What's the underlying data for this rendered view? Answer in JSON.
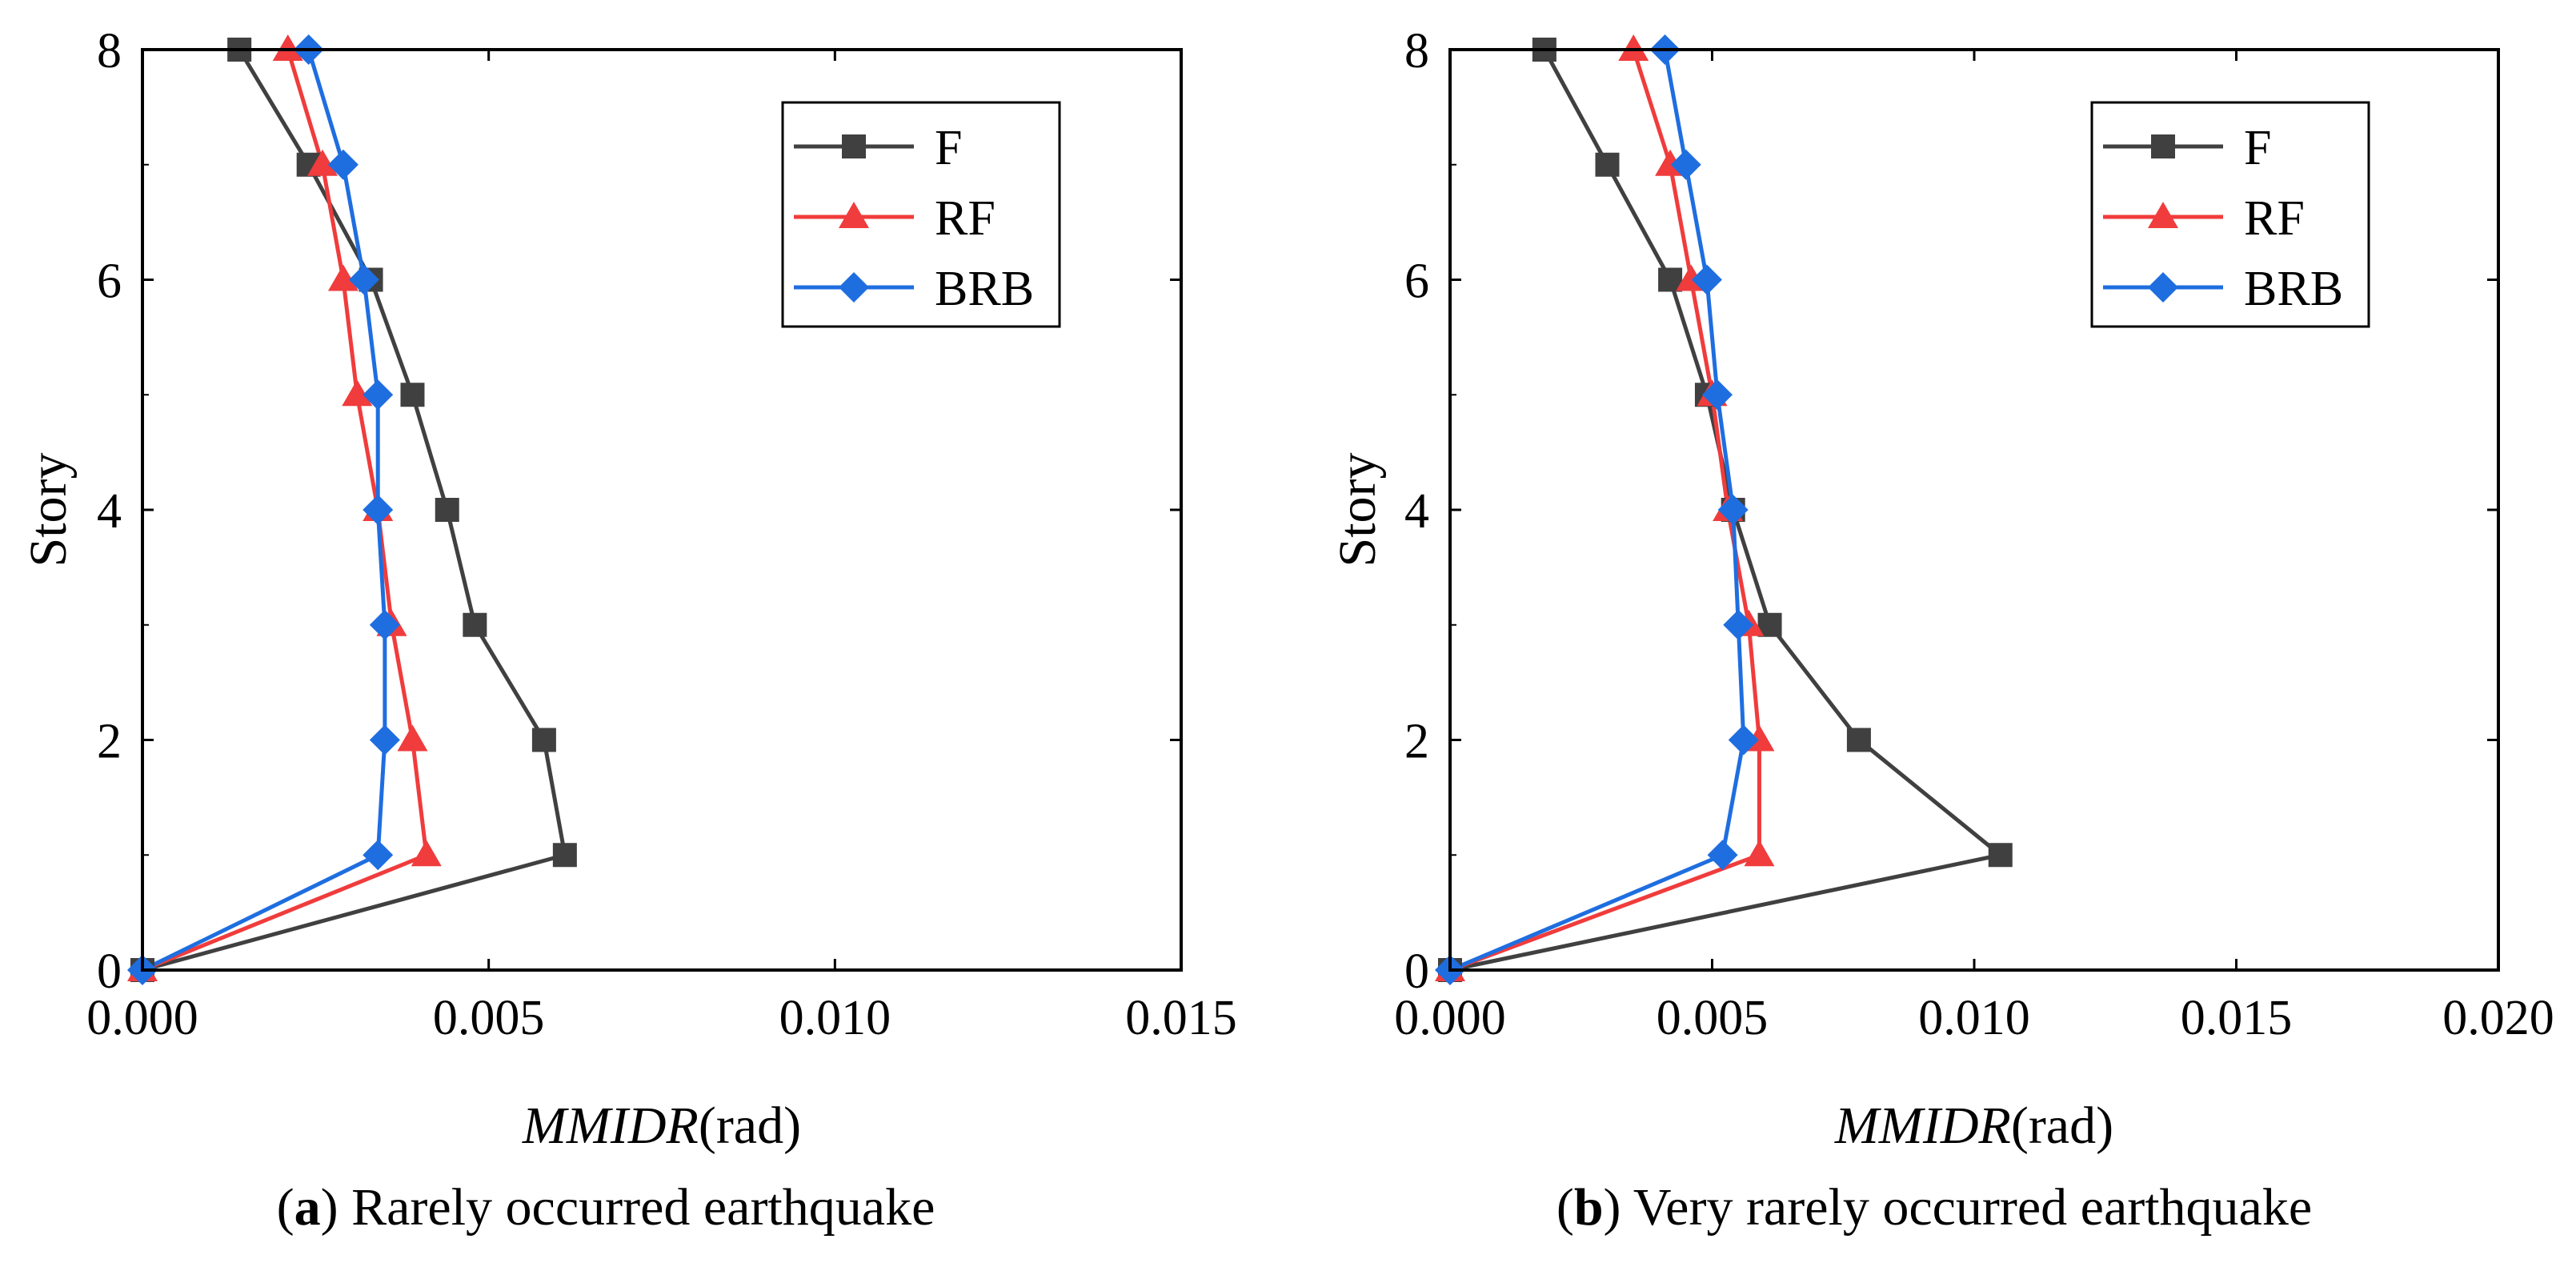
{
  "chart_data": [
    {
      "type": "line",
      "xlabel_italic": "MMIDR",
      "xlabel_unit": "(rad)",
      "ylabel": "Story",
      "caption_letter": "a",
      "caption_text": ") Rarely occurred earthquake",
      "xlim": [
        0,
        0.015
      ],
      "ylim": [
        0,
        8
      ],
      "xticks": [
        "0.000",
        "0.005",
        "0.010",
        "0.015"
      ],
      "yticks": [
        "0",
        "2",
        "4",
        "6",
        "8"
      ],
      "legend_position": "top-right",
      "series": [
        {
          "name": "F",
          "color": "#404040",
          "marker": "square",
          "x": [
            0,
            0.0061,
            0.0058,
            0.0048,
            0.0044,
            0.0039,
            0.0033,
            0.0024,
            0.0014
          ],
          "y": [
            0,
            1,
            2,
            3,
            4,
            5,
            6,
            7,
            8
          ]
        },
        {
          "name": "RF",
          "color": "#f03c3c",
          "marker": "triangle",
          "x": [
            0,
            0.0041,
            0.0039,
            0.0036,
            0.0034,
            0.0031,
            0.0029,
            0.0026,
            0.0021
          ],
          "y": [
            0,
            1,
            2,
            3,
            4,
            5,
            6,
            7,
            8
          ]
        },
        {
          "name": "BRB",
          "color": "#1f6ee0",
          "marker": "diamond",
          "x": [
            0,
            0.0034,
            0.0035,
            0.0035,
            0.0034,
            0.0034,
            0.0032,
            0.0029,
            0.0024
          ],
          "y": [
            0,
            1,
            2,
            3,
            4,
            5,
            6,
            7,
            8
          ]
        }
      ]
    },
    {
      "type": "line",
      "xlabel_italic": "MMIDR",
      "xlabel_unit": "(rad)",
      "ylabel": "Story",
      "caption_letter": "b",
      "caption_text": ") Very rarely occurred earthquake",
      "xlim": [
        0,
        0.02
      ],
      "ylim": [
        0,
        8
      ],
      "xticks": [
        "0.000",
        "0.005",
        "0.010",
        "0.015",
        "0.020"
      ],
      "yticks": [
        "0",
        "2",
        "4",
        "6",
        "8"
      ],
      "legend_position": "top-right",
      "series": [
        {
          "name": "F",
          "color": "#404040",
          "marker": "square",
          "x": [
            0,
            0.0105,
            0.0078,
            0.0061,
            0.0054,
            0.0049,
            0.0042,
            0.003,
            0.0018
          ],
          "y": [
            0,
            1,
            2,
            3,
            4,
            5,
            6,
            7,
            8
          ]
        },
        {
          "name": "RF",
          "color": "#f03c3c",
          "marker": "triangle",
          "x": [
            0,
            0.0059,
            0.0059,
            0.0057,
            0.0053,
            0.005,
            0.0046,
            0.0042,
            0.0035
          ],
          "y": [
            0,
            1,
            2,
            3,
            4,
            5,
            6,
            7,
            8
          ]
        },
        {
          "name": "BRB",
          "color": "#1f6ee0",
          "marker": "diamond",
          "x": [
            0,
            0.0052,
            0.0056,
            0.0055,
            0.0054,
            0.0051,
            0.0049,
            0.0045,
            0.0041
          ],
          "y": [
            0,
            1,
            2,
            3,
            4,
            5,
            6,
            7,
            8
          ]
        }
      ]
    }
  ]
}
